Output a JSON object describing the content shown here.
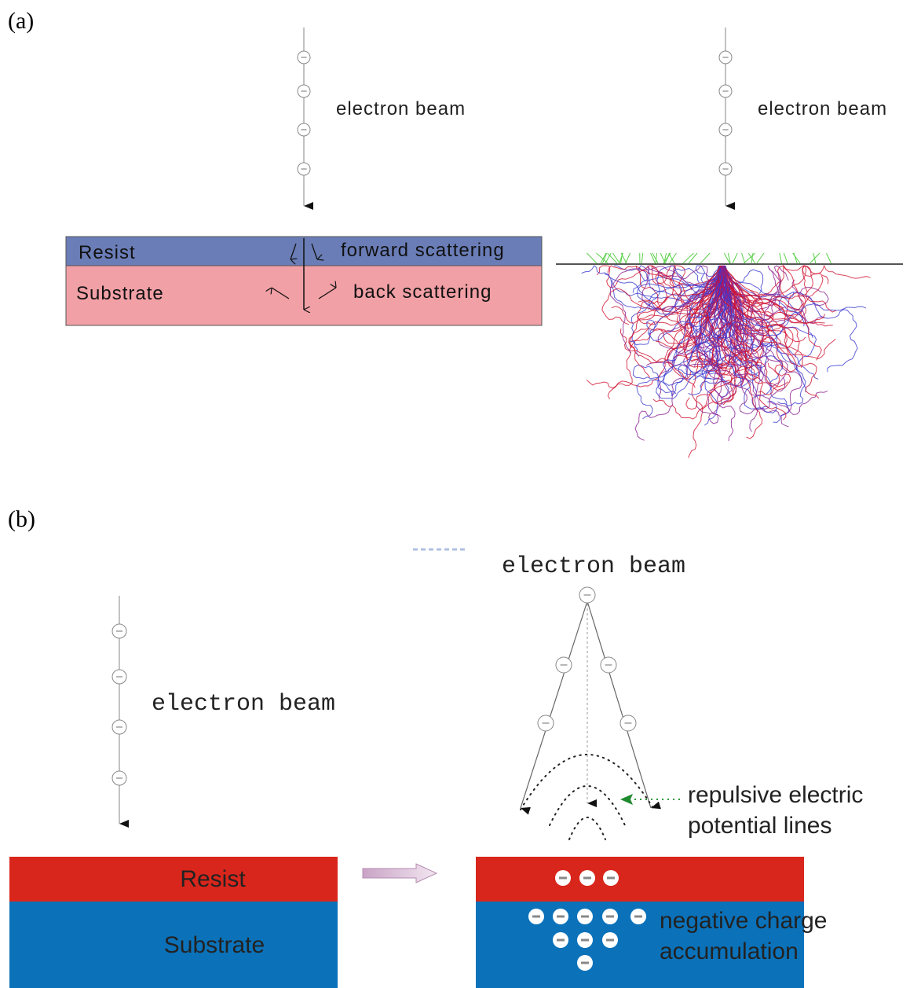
{
  "panel_a": {
    "label": "(a)",
    "left": {
      "beam_label": "electron beam",
      "resist": "Resist",
      "substrate": "Substrate",
      "forward": "forward scattering",
      "back": "back scattering"
    },
    "right": {
      "beam_label": "electron beam"
    }
  },
  "panel_b": {
    "label": "(b)",
    "left": {
      "beam_label": "electron beam",
      "resist": "Resist",
      "substrate": "Substrate"
    },
    "right": {
      "beam_label": "electron beam",
      "potential_lines": [
        "repulsive electric",
        "potential lines"
      ],
      "charge": [
        "negative charge",
        "accumulation"
      ]
    }
  }
}
